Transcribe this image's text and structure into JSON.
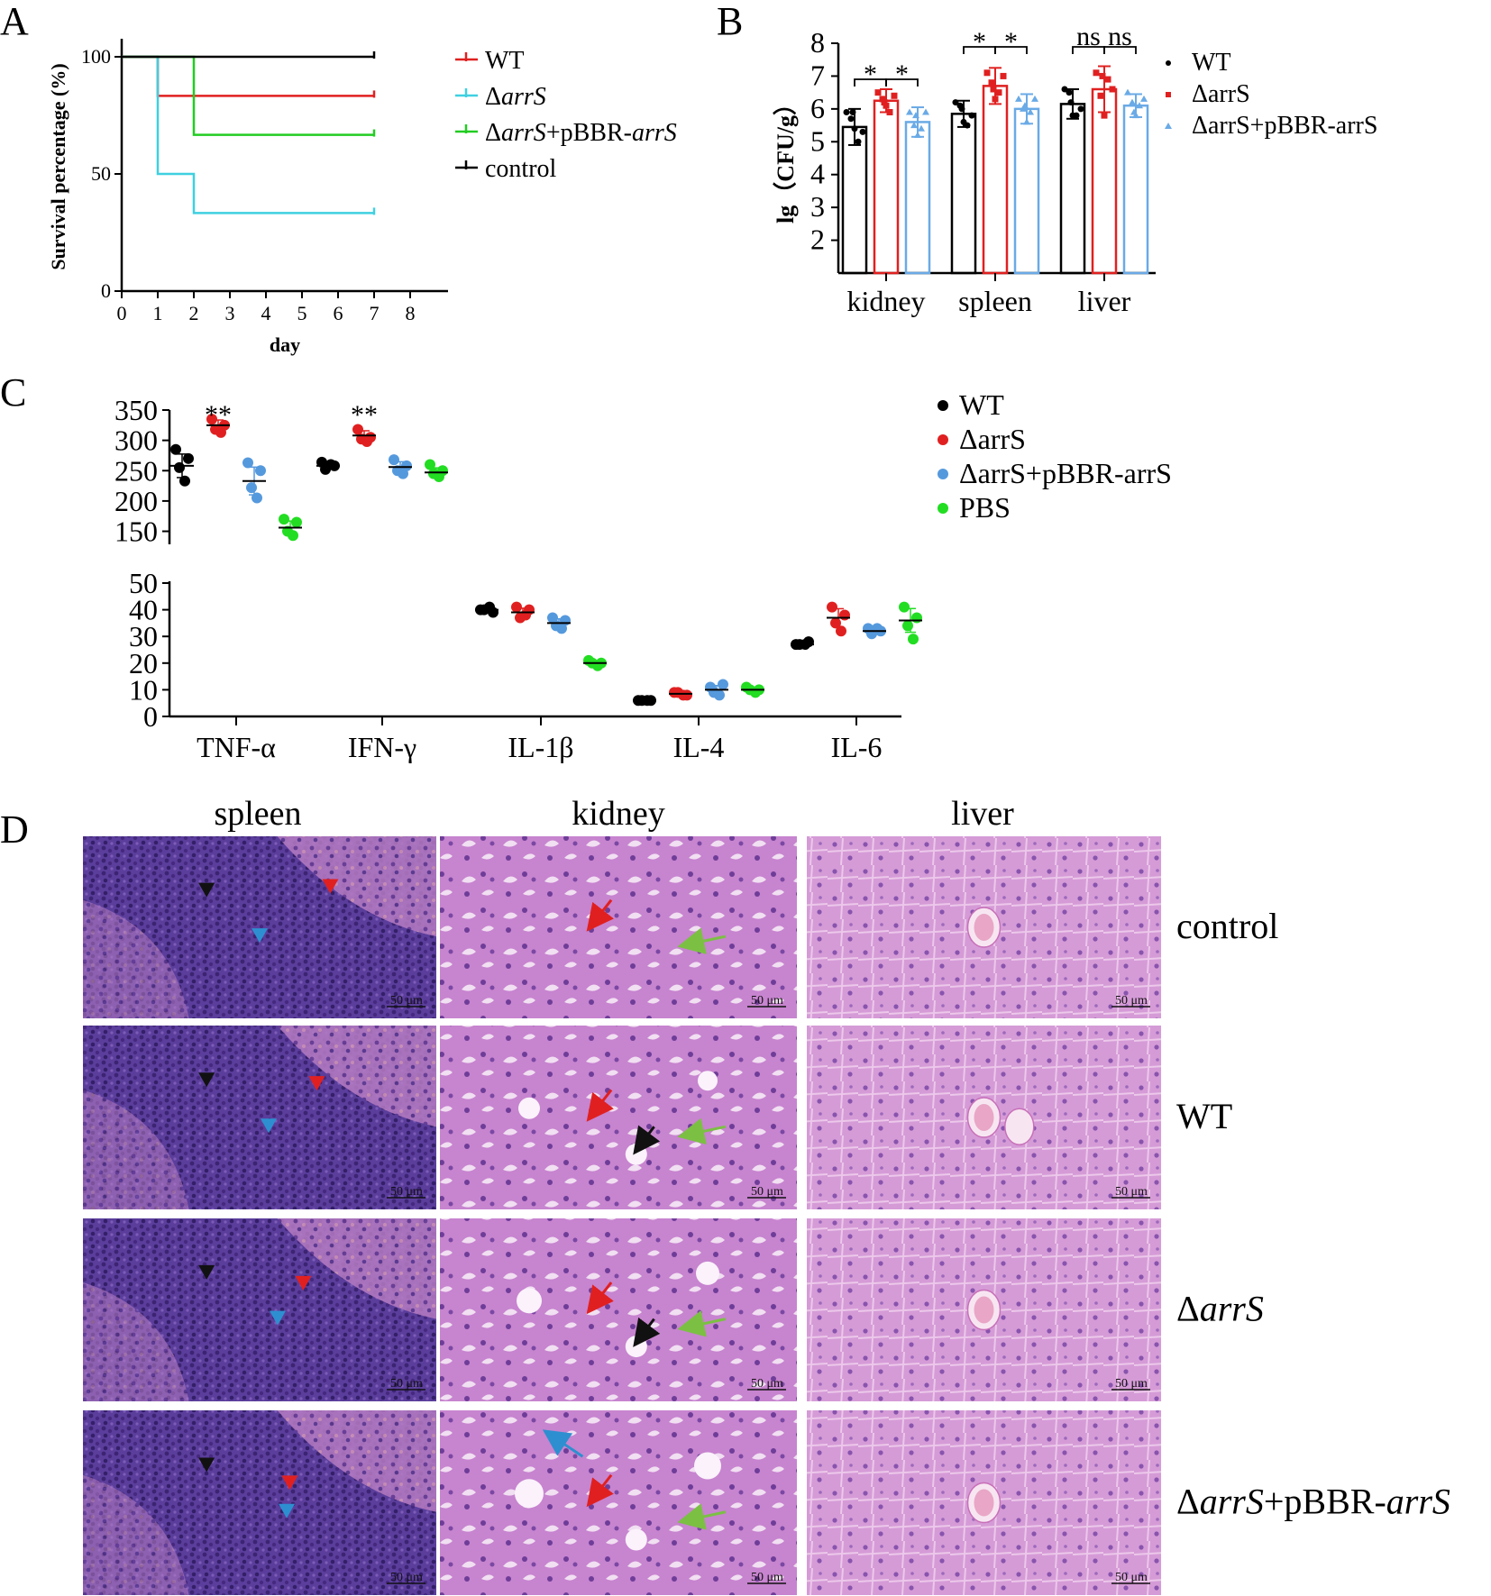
{
  "panels": {
    "A": "A",
    "B": "B",
    "C": "C",
    "D": "D"
  },
  "chart_data": [
    {
      "id": "A",
      "type": "line",
      "xlabel": "day",
      "ylabel": "Survival percentage (%)",
      "xlim": [
        0,
        8
      ],
      "ylim": [
        0,
        100
      ],
      "xticks": [
        "0",
        "1",
        "2",
        "3",
        "4",
        "5",
        "6",
        "7",
        "8"
      ],
      "yticks": [
        "0",
        "50",
        "100"
      ],
      "legend_position": "top-right",
      "series": [
        {
          "name": "WT",
          "pre": "",
          "ital": "",
          "post": "",
          "color": "#e02020",
          "points": [
            [
              0,
              100
            ],
            [
              1,
              100
            ],
            [
              1,
              83.3
            ],
            [
              7,
              83.3
            ]
          ]
        },
        {
          "name": "ΔarrS",
          "pre": "Δ",
          "ital": "arrS",
          "post": "",
          "color": "#3fd0e0",
          "points": [
            [
              0,
              100
            ],
            [
              1,
              100
            ],
            [
              1,
              50
            ],
            [
              2,
              50
            ],
            [
              2,
              33.3
            ],
            [
              7,
              33.3
            ]
          ]
        },
        {
          "name": "ΔarrS+pBBR-arrS",
          "pre": "Δ",
          "ital": "arrS",
          "post": "+pBBR-",
          "ital2": "arrS",
          "color": "#22cc22",
          "points": [
            [
              0,
              100
            ],
            [
              2,
              100
            ],
            [
              2,
              66.7
            ],
            [
              7,
              66.7
            ]
          ]
        },
        {
          "name": "control",
          "pre": "",
          "ital": "",
          "post": "",
          "color": "#000000",
          "points": [
            [
              0,
              100
            ],
            [
              7,
              100
            ]
          ]
        }
      ]
    },
    {
      "id": "B",
      "type": "bar",
      "ylabel": "lg（CFU/g）",
      "ylim": [
        1,
        8
      ],
      "yticks": [
        "2",
        "3",
        "4",
        "5",
        "6",
        "7",
        "8"
      ],
      "categories": [
        "kidney",
        "spleen",
        "liver"
      ],
      "legend_position": "right",
      "series": [
        {
          "name": "WT",
          "color": "#000000",
          "marker": "circle",
          "values": [
            5.45,
            5.85,
            6.15
          ],
          "errors": [
            0.55,
            0.4,
            0.45
          ],
          "points": [
            [
              5.9,
              5.7,
              5.4,
              5.0,
              5.3,
              5.9
            ],
            [
              6.2,
              6.1,
              5.6,
              5.5,
              5.8,
              6.0
            ],
            [
              6.6,
              6.5,
              5.8,
              5.8,
              6.0,
              6.2
            ]
          ]
        },
        {
          "name": "ΔarrS",
          "color": "#e02020",
          "marker": "square",
          "values": [
            6.25,
            6.7,
            6.6
          ],
          "errors": [
            0.35,
            0.55,
            0.7
          ],
          "points": [
            [
              6.5,
              6.3,
              6.1,
              5.9,
              6.4,
              6.2
            ],
            [
              7.1,
              6.8,
              6.3,
              6.5,
              7.0,
              6.6
            ],
            [
              7.1,
              6.4,
              5.8,
              6.9,
              6.6,
              7.0
            ]
          ]
        },
        {
          "name": "ΔarrS+pBBR-arrS",
          "color": "#6aaae6",
          "marker": "triangle",
          "values": [
            5.6,
            6.0,
            6.1
          ],
          "errors": [
            0.45,
            0.45,
            0.35
          ],
          "points": [
            [
              5.9,
              5.5,
              5.2,
              5.4,
              5.9,
              5.8
            ],
            [
              6.3,
              6.0,
              5.6,
              5.9,
              6.3,
              6.1
            ],
            [
              6.5,
              6.2,
              5.8,
              6.1,
              6.3,
              5.9
            ]
          ]
        }
      ],
      "significance": [
        {
          "label": "*",
          "group": 0,
          "from": 0,
          "to": 1
        },
        {
          "label": "*",
          "group": 0,
          "from": 1,
          "to": 2
        },
        {
          "label": "*",
          "group": 1,
          "from": 0,
          "to": 1
        },
        {
          "label": "*",
          "group": 1,
          "from": 1,
          "to": 2
        },
        {
          "label": "ns",
          "group": 2,
          "from": 0,
          "to": 1
        },
        {
          "label": "ns",
          "group": 2,
          "from": 1,
          "to": 2
        }
      ]
    },
    {
      "id": "C",
      "type": "scatter",
      "categories": [
        "TNF-α",
        "IFN-γ",
        "IL-1β",
        "IL-4",
        "IL-6"
      ],
      "upper_axis": {
        "ylim": [
          130,
          350
        ],
        "yticks": [
          "150",
          "200",
          "250",
          "300",
          "350"
        ]
      },
      "lower_axis": {
        "ylim": [
          0,
          50
        ],
        "yticks": [
          "0",
          "10",
          "20",
          "30",
          "40",
          "50"
        ]
      },
      "legend_position": "top-right",
      "series": [
        {
          "name": "WT",
          "color": "#000000",
          "points": [
            [
              285,
              270,
              255,
              233
            ],
            [
              264,
              258,
              252,
              260
            ],
            [
              40,
              39,
              40,
              41
            ],
            [
              6,
              6,
              6,
              6
            ],
            [
              27,
              28,
              27,
              27
            ]
          ],
          "means": [
            258,
            258,
            40,
            6,
            27
          ]
        },
        {
          "name": "ΔarrS",
          "color": "#e02020",
          "points": [
            [
              335,
              325,
              318,
              313
            ],
            [
              318,
              305,
              302,
              298
            ],
            [
              41,
              40,
              37,
              38
            ],
            [
              9,
              8,
              9,
              8
            ],
            [
              41,
              38,
              35,
              32
            ]
          ],
          "means": [
            325,
            308,
            39,
            8.5,
            37
          ]
        },
        {
          "name": "ΔarrS+pBBR-arrS",
          "color": "#5599dd",
          "points": [
            [
              263,
              250,
              222,
              205
            ],
            [
              268,
              258,
              250,
              245
            ],
            [
              37,
              36,
              34,
              33
            ],
            [
              11,
              12,
              9,
              8
            ],
            [
              33,
              32,
              31,
              33
            ]
          ],
          "means": [
            233,
            256,
            35,
            10,
            32
          ]
        },
        {
          "name": "PBS",
          "color": "#22dd22",
          "points": [
            [
              170,
              165,
              150,
              143
            ],
            [
              260,
              250,
              245,
              240
            ],
            [
              21,
              20,
              20,
              19
            ],
            [
              11,
              10,
              10,
              9
            ],
            [
              41,
              37,
              34,
              29
            ]
          ],
          "means": [
            156,
            247,
            20,
            10,
            36
          ]
        }
      ],
      "significance": [
        {
          "label": "**",
          "category": 0
        },
        {
          "label": "**",
          "category": 1
        }
      ]
    }
  ],
  "histology": {
    "columns": [
      "spleen",
      "kidney",
      "liver"
    ],
    "rows": [
      {
        "name": "control",
        "pre": "",
        "ital": "",
        "post": "",
        "ital2": ""
      },
      {
        "name": "WT",
        "pre": "",
        "ital": "",
        "post": "",
        "ital2": ""
      },
      {
        "name": "ΔarrS",
        "pre": "Δ",
        "ital": "arrS",
        "post": "",
        "ital2": ""
      },
      {
        "name": "ΔarrS+pBBR-arrS",
        "pre": "Δ",
        "ital": "arrS",
        "post": "+pBBR-",
        "ital2": "arrS"
      }
    ],
    "scale_bar": "50 μm",
    "colors": {
      "spleen": "#5a3c9e",
      "spleen_light": "#9e6fc6",
      "tissue": "#c68ad0",
      "tissue_light": "#e2b8e0",
      "nucleus": "#6a3a9a",
      "red_arrow": "#e02020",
      "blue_arrow": "#2d8fd0",
      "black_arrow": "#111111",
      "green_arrow": "#7bc043"
    }
  }
}
